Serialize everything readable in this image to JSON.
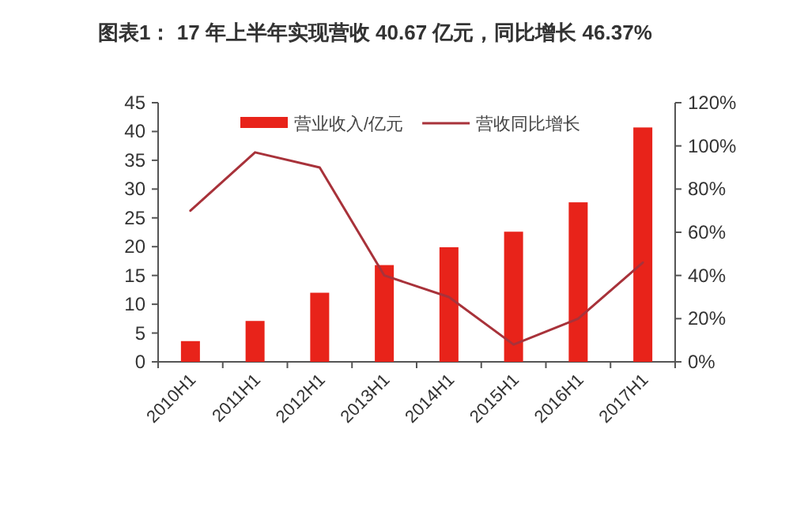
{
  "chart_data": {
    "type": "bar",
    "title": "图表1：  17 年上半年实现营收 40.67 亿元，同比增长 46.37%",
    "categories": [
      "2010H1",
      "2011H1",
      "2012H1",
      "2013H1",
      "2014H1",
      "2015H1",
      "2016H1",
      "2017H1"
    ],
    "series": [
      {
        "name": "营业收入/亿元",
        "color": "#e8231a",
        "values": [
          3.6,
          7.1,
          12,
          16.8,
          19.9,
          22.6,
          27.7,
          40.7
        ]
      },
      {
        "name": "营收同比增长",
        "type": "line",
        "axis": "y2",
        "color": "#a8323a",
        "values": [
          70,
          97,
          90,
          40,
          30,
          8,
          20,
          46
        ]
      }
    ],
    "ylim": [
      0,
      45
    ],
    "yticks": [
      0,
      5,
      10,
      15,
      20,
      25,
      30,
      35,
      40,
      45
    ],
    "y2lim": [
      0,
      120
    ],
    "y2ticks": [
      {
        "value": 0,
        "label": "0%"
      },
      {
        "value": 20,
        "label": "20%"
      },
      {
        "value": 40,
        "label": "40%"
      },
      {
        "value": 60,
        "label": "60%"
      },
      {
        "value": 80,
        "label": "80%"
      },
      {
        "value": 100,
        "label": "100%"
      },
      {
        "value": 120,
        "label": "120%"
      }
    ],
    "legend": "top",
    "grid": false
  }
}
